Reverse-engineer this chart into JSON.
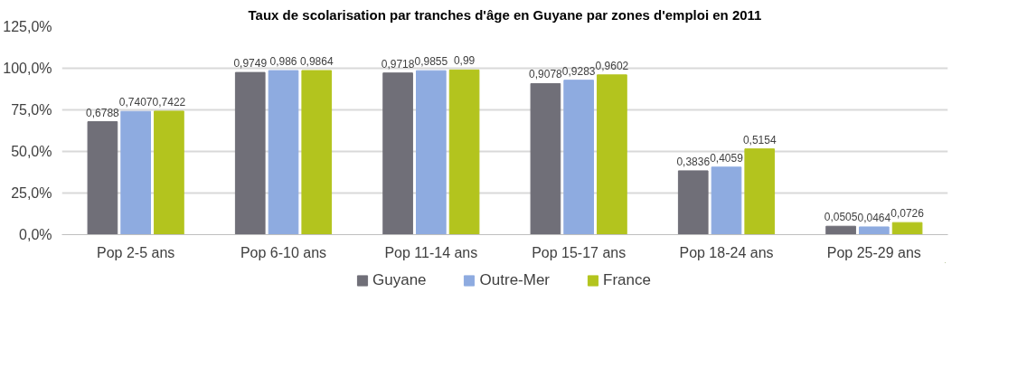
{
  "chart_data": {
    "type": "bar",
    "title": "Taux de scolarisation par tranches d'âge en Guyane par zones d'emploi en 2011",
    "categories": [
      "Pop 2-5 ans",
      "Pop 6-10 ans",
      "Pop 11-14 ans",
      "Pop 15-17 ans",
      "Pop 18-24 ans",
      "Pop 25-29 ans"
    ],
    "series": [
      {
        "name": "Guyane",
        "color": "#706f78",
        "values": [
          0.6788,
          0.9749,
          0.9718,
          0.9078,
          0.3836,
          0.0505
        ],
        "value_labels": [
          "0,6788",
          "0,9749",
          "0,9718",
          "0,9078",
          "0,3836",
          "0,0505"
        ]
      },
      {
        "name": "Outre-Mer",
        "color": "#8eabe0",
        "values": [
          0.7407,
          0.986,
          0.9855,
          0.9283,
          0.4059,
          0.0464
        ],
        "value_labels": [
          "0,7407",
          "0,986",
          "0,9855",
          "0,9283",
          "0,4059",
          "0,0464"
        ]
      },
      {
        "name": "France",
        "color": "#b3c41e",
        "values": [
          0.7422,
          0.9864,
          0.99,
          0.9602,
          0.5154,
          0.0726
        ],
        "value_labels": [
          "0,7422",
          "0,9864",
          "0,99",
          "0,9602",
          "0,5154",
          "0,0726"
        ]
      }
    ],
    "ylim": [
      0,
      1.25
    ],
    "yticks": [
      {
        "value": 0,
        "label": "0,0%"
      },
      {
        "value": 0.25,
        "label": "25,0%"
      },
      {
        "value": 0.5,
        "label": "50,0%"
      },
      {
        "value": 0.75,
        "label": "75,0%"
      },
      {
        "value": 1,
        "label": "100,0%"
      },
      {
        "value": 1.25,
        "label": "125,0%"
      }
    ],
    "grid": "y",
    "legend": "bottom"
  }
}
